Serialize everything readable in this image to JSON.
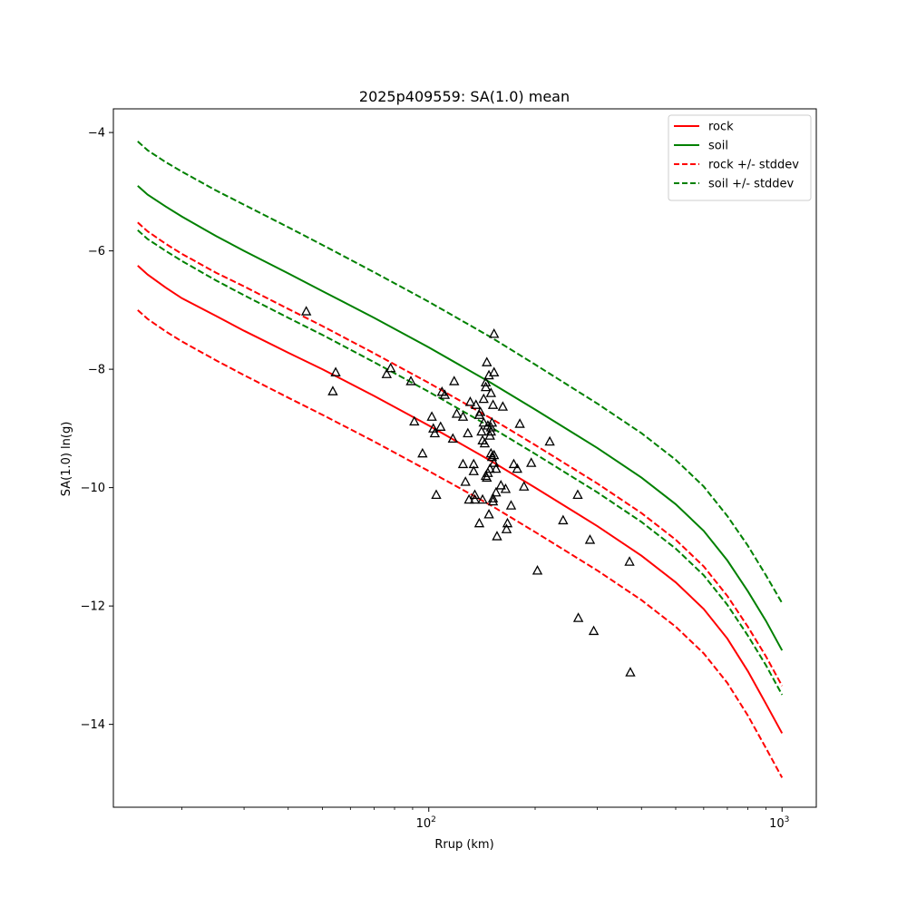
{
  "chart_data": {
    "type": "scatter",
    "title": "2025p409559: SA(1.0) mean",
    "xlabel": "Rrup (km)",
    "ylabel": "SA(1.0) ln(g)",
    "xscale": "log",
    "xlim": [
      12.8,
      1250
    ],
    "ylim": [
      -15.4,
      -3.6
    ],
    "x_ticks": [
      {
        "value": 100,
        "label": "10",
        "sup": "2"
      },
      {
        "value": 1000,
        "label": "10",
        "sup": "3"
      }
    ],
    "y_ticks": [
      {
        "value": -4,
        "label": "−4"
      },
      {
        "value": -6,
        "label": "−6"
      },
      {
        "value": -8,
        "label": "−8"
      },
      {
        "value": -10,
        "label": "−10"
      },
      {
        "value": -12,
        "label": "−12"
      },
      {
        "value": -14,
        "label": "−14"
      }
    ],
    "legend_position": "top-right",
    "series": [
      {
        "name": "rock",
        "color": "#ff0000",
        "dash": "solid",
        "x": [
          15,
          16,
          18,
          20,
          25,
          30,
          40,
          50,
          70,
          100,
          150,
          200,
          300,
          400,
          500,
          600,
          700,
          800,
          900,
          1000
        ],
        "y": [
          -6.25,
          -6.4,
          -6.62,
          -6.8,
          -7.1,
          -7.35,
          -7.72,
          -8.0,
          -8.45,
          -8.95,
          -9.55,
          -10.0,
          -10.65,
          -11.15,
          -11.6,
          -12.05,
          -12.55,
          -13.1,
          -13.65,
          -14.15
        ]
      },
      {
        "name": "soil",
        "color": "#008000",
        "dash": "solid",
        "x": [
          15,
          16,
          18,
          20,
          25,
          30,
          40,
          50,
          70,
          100,
          150,
          200,
          300,
          400,
          500,
          600,
          700,
          800,
          900,
          1000
        ],
        "y": [
          -4.9,
          -5.05,
          -5.25,
          -5.42,
          -5.75,
          -6.0,
          -6.38,
          -6.68,
          -7.13,
          -7.63,
          -8.23,
          -8.68,
          -9.33,
          -9.83,
          -10.28,
          -10.73,
          -11.23,
          -11.75,
          -12.25,
          -12.75
        ]
      },
      {
        "name": "rock +/- stddev",
        "color": "#ff0000",
        "dash": "dashed",
        "x": [
          15,
          16,
          18,
          20,
          25,
          30,
          40,
          50,
          70,
          100,
          150,
          200,
          300,
          400,
          500,
          600,
          700,
          800,
          900,
          1000
        ],
        "y": [
          -5.52,
          -5.67,
          -5.88,
          -6.05,
          -6.37,
          -6.6,
          -6.98,
          -7.27,
          -7.73,
          -8.23,
          -8.83,
          -9.28,
          -9.93,
          -10.43,
          -10.88,
          -11.33,
          -11.83,
          -12.35,
          -12.85,
          -13.35
        ]
      },
      {
        "name": "",
        "color": "#ff0000",
        "dash": "dashed",
        "x": [
          15,
          16,
          18,
          20,
          25,
          30,
          40,
          50,
          70,
          100,
          150,
          200,
          300,
          400,
          500,
          600,
          700,
          800,
          900,
          1000
        ],
        "y": [
          -7.0,
          -7.15,
          -7.36,
          -7.53,
          -7.85,
          -8.1,
          -8.48,
          -8.77,
          -9.22,
          -9.72,
          -10.3,
          -10.75,
          -11.4,
          -11.9,
          -12.35,
          -12.8,
          -13.3,
          -13.85,
          -14.4,
          -14.9
        ]
      },
      {
        "name": "soil +/- stddev",
        "color": "#008000",
        "dash": "dashed",
        "x": [
          15,
          16,
          18,
          20,
          25,
          30,
          40,
          50,
          70,
          100,
          150,
          200,
          300,
          400,
          500,
          600,
          700,
          800,
          900,
          1000
        ],
        "y": [
          -4.15,
          -4.3,
          -4.5,
          -4.66,
          -4.98,
          -5.22,
          -5.6,
          -5.9,
          -6.36,
          -6.86,
          -7.46,
          -7.92,
          -8.58,
          -9.08,
          -9.53,
          -9.98,
          -10.48,
          -10.98,
          -11.48,
          -11.95
        ]
      },
      {
        "name": "",
        "color": "#008000",
        "dash": "dashed",
        "x": [
          15,
          16,
          18,
          20,
          25,
          30,
          40,
          50,
          70,
          100,
          150,
          200,
          300,
          400,
          500,
          600,
          700,
          800,
          900,
          1000
        ],
        "y": [
          -5.65,
          -5.8,
          -6.0,
          -6.17,
          -6.5,
          -6.75,
          -7.13,
          -7.42,
          -7.88,
          -8.38,
          -8.98,
          -9.43,
          -10.08,
          -10.58,
          -11.03,
          -11.48,
          -11.98,
          -12.5,
          -13.0,
          -13.5
        ]
      }
    ],
    "observations": {
      "marker": "triangle",
      "color": "#000000",
      "points": [
        [
          45,
          -7.02
        ],
        [
          54.5,
          -8.05
        ],
        [
          53.5,
          -8.37
        ],
        [
          76,
          -8.08
        ],
        [
          78,
          -7.98
        ],
        [
          89,
          -8.2
        ],
        [
          91,
          -8.88
        ],
        [
          96,
          -9.42
        ],
        [
          102,
          -8.8
        ],
        [
          103,
          -9.0
        ],
        [
          104,
          -9.08
        ],
        [
          105,
          -10.12
        ],
        [
          108,
          -8.97
        ],
        [
          109,
          -8.38
        ],
        [
          111,
          -8.43
        ],
        [
          117,
          -9.17
        ],
        [
          118,
          -8.2
        ],
        [
          120,
          -8.75
        ],
        [
          125,
          -9.6
        ],
        [
          125,
          -8.8
        ],
        [
          127,
          -9.9
        ],
        [
          129,
          -9.08
        ],
        [
          130,
          -10.2
        ],
        [
          131,
          -8.55
        ],
        [
          134,
          -9.72
        ],
        [
          134,
          -9.6
        ],
        [
          135,
          -10.2
        ],
        [
          135,
          -10.12
        ],
        [
          136,
          -8.6
        ],
        [
          139,
          -10.6
        ],
        [
          139,
          -8.77
        ],
        [
          140,
          -8.72
        ],
        [
          141,
          -9.05
        ],
        [
          142,
          -10.2
        ],
        [
          142,
          -9.2
        ],
        [
          143,
          -8.9
        ],
        [
          143,
          -8.5
        ],
        [
          144,
          -9.25
        ],
        [
          145,
          -9.8
        ],
        [
          145,
          -8.3
        ],
        [
          145,
          -8.22
        ],
        [
          146,
          -9.83
        ],
        [
          146,
          -7.88
        ],
        [
          147,
          -9.75
        ],
        [
          147,
          -8.95
        ],
        [
          148,
          -10.45
        ],
        [
          148,
          -8.1
        ],
        [
          149,
          -9.68
        ],
        [
          149,
          -9.12
        ],
        [
          150,
          -8.4
        ],
        [
          150,
          -9.42
        ],
        [
          150,
          -9.05
        ],
        [
          150,
          -8.98
        ],
        [
          151,
          -8.9
        ],
        [
          151,
          -9.48
        ],
        [
          152,
          -8.6
        ],
        [
          152,
          -10.18
        ],
        [
          152,
          -10.23
        ],
        [
          153,
          -9.58
        ],
        [
          153,
          -7.4
        ],
        [
          153,
          -9.45
        ],
        [
          153,
          -8.05
        ],
        [
          155,
          -10.08
        ],
        [
          155,
          -9.68
        ],
        [
          156,
          -10.82
        ],
        [
          160,
          -9.96
        ],
        [
          162,
          -8.63
        ],
        [
          165,
          -10.02
        ],
        [
          166,
          -10.7
        ],
        [
          167,
          -10.6
        ],
        [
          171,
          -10.3
        ],
        [
          174,
          -9.6
        ],
        [
          178,
          -9.68
        ],
        [
          181,
          -8.92
        ],
        [
          186,
          -9.98
        ],
        [
          195,
          -9.58
        ],
        [
          203,
          -11.4
        ],
        [
          220,
          -9.22
        ],
        [
          240,
          -10.55
        ],
        [
          264,
          -10.12
        ],
        [
          265,
          -12.2
        ],
        [
          286,
          -10.88
        ],
        [
          293,
          -12.42
        ],
        [
          370,
          -11.25
        ],
        [
          372,
          -13.12
        ]
      ]
    }
  }
}
